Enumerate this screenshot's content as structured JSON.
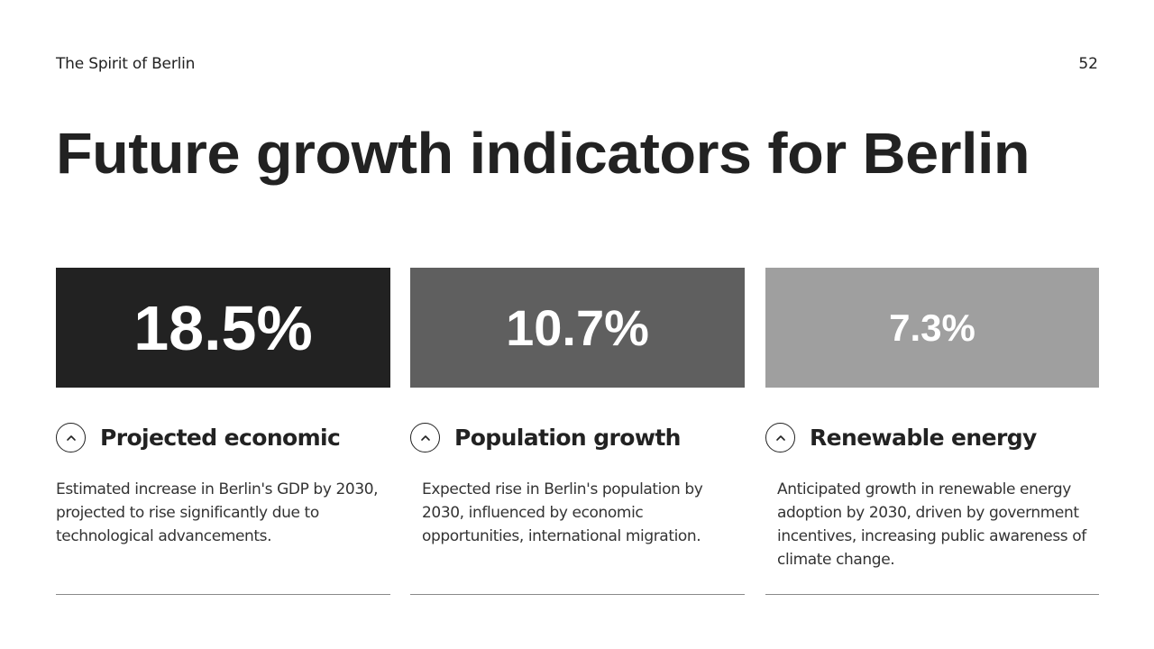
{
  "header": {
    "deck_title": "The Spirit of Berlin",
    "page_number": "52"
  },
  "title": "Future growth indicators for Berlin",
  "cards": [
    {
      "value": "18.5%",
      "heading": "Projected economic",
      "description": "Estimated increase in Berlin's GDP by 2030, projected to rise significantly due to technological advancements.",
      "icon": "chevron-up-icon",
      "color": "#222222"
    },
    {
      "value": "10.7%",
      "heading": "Population growth",
      "description": "Expected rise in Berlin's population by 2030, influenced by economic opportunities, international migration.",
      "icon": "chevron-up-icon",
      "color": "#5f5f5f"
    },
    {
      "value": "7.3%",
      "heading": "Renewable energy",
      "description": "Anticipated growth in renewable energy adoption by 2030, driven by government incentives, increasing public awareness of climate change.",
      "icon": "chevron-up-icon",
      "color": "#9f9f9f"
    }
  ]
}
